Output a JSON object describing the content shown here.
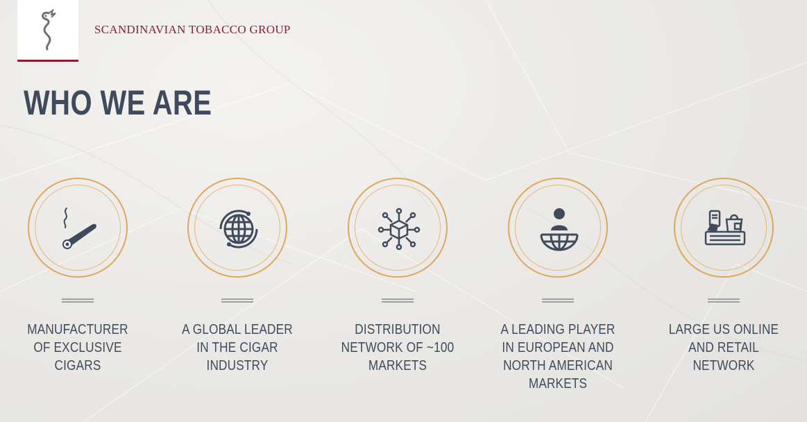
{
  "brand": {
    "name": "SCANDINAVIAN TOBACCO GROUP",
    "logo_icon": "seahorse-logo-icon",
    "accent_color": "#8c1d32"
  },
  "page": {
    "title": "WHO WE ARE"
  },
  "items": [
    {
      "label": "MANUFACTURER OF EXCLUSIVE CIGARS",
      "icon": "cigar-icon"
    },
    {
      "label": "A GLOBAL LEADER IN THE CIGAR INDUSTRY",
      "icon": "globe-icon"
    },
    {
      "label": "DISTRIBUTION NETWORK OF ~100 MARKETS",
      "icon": "network-icon"
    },
    {
      "label": "A LEADING PLAYER IN EUROPEAN AND NORTH AMERICAN MARKETS",
      "icon": "person-globe-icon"
    },
    {
      "label": "LARGE US ONLINE AND RETAIL NETWORK",
      "icon": "online-shop-icon"
    }
  ],
  "colors": {
    "text": "#3f4b5c",
    "circle_ring": "#e0a65b",
    "divider": "#9aa0a6"
  }
}
